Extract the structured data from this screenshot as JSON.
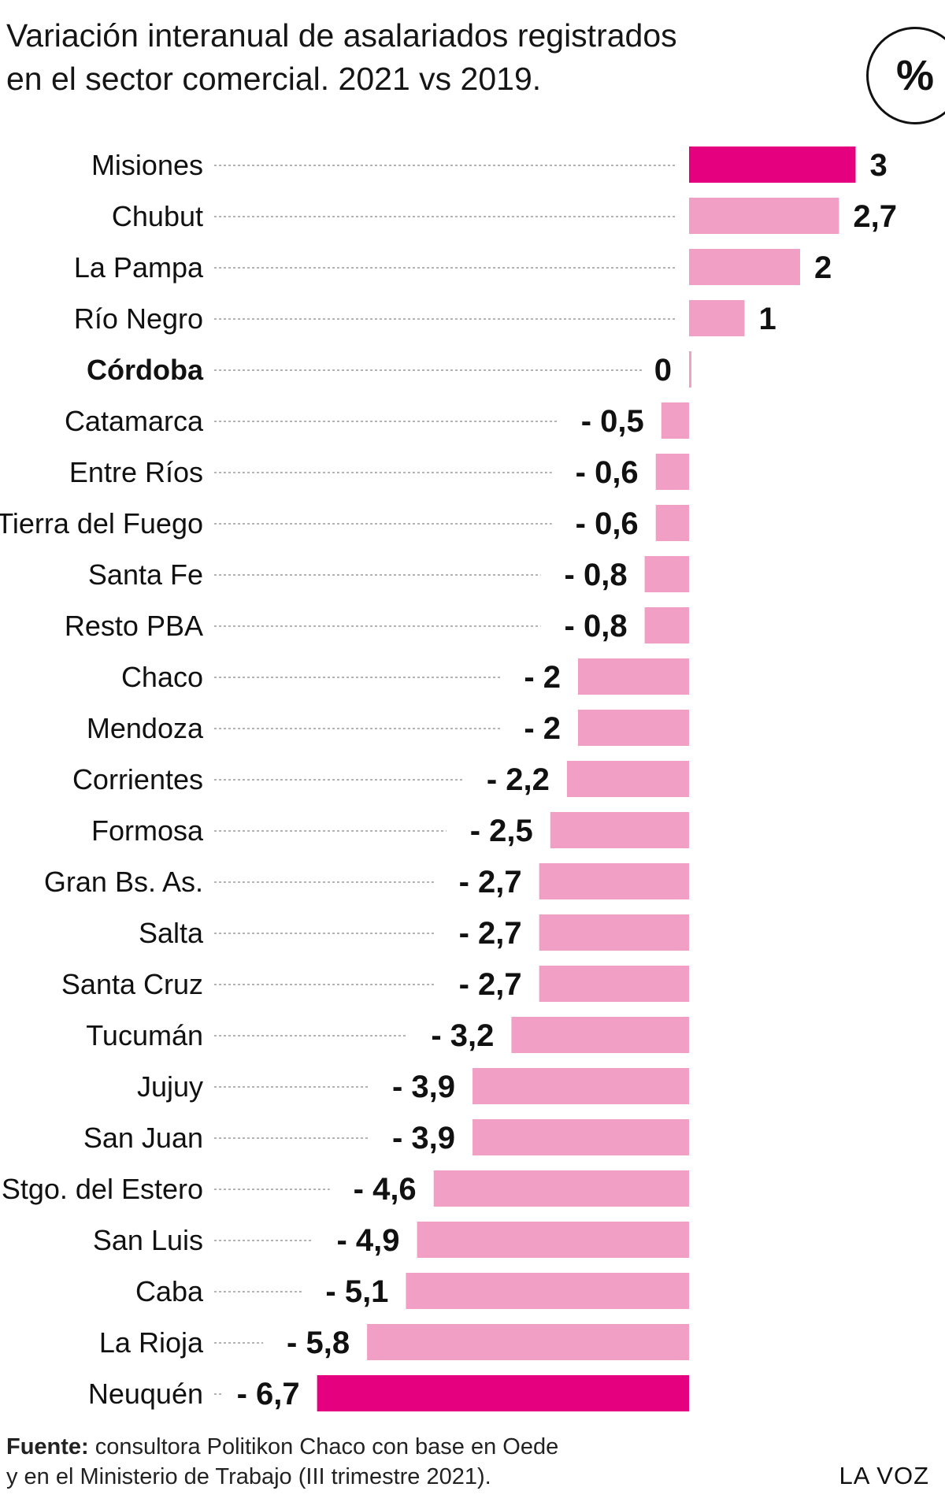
{
  "title": {
    "line1": "Variación interanual de asalariados registrados",
    "line2": "en el sector comercial. 2021 vs 2019."
  },
  "unit_badge": "%",
  "chart_data": {
    "type": "bar",
    "orientation": "horizontal",
    "title": "Variación interanual de asalariados registrados en el sector comercial. 2021 vs 2019.",
    "unit": "%",
    "categories": [
      "Misiones",
      "Chubut",
      "La Pampa",
      "Río Negro",
      "Córdoba",
      "Catamarca",
      "Entre Ríos",
      "Tierra del Fuego",
      "Santa Fe",
      "Resto PBA",
      "Chaco",
      "Mendoza",
      "Corrientes",
      "Formosa",
      "Gran Bs. As.",
      "Salta",
      "Santa Cruz",
      "Tucumán",
      "Jujuy",
      "San Juan",
      "Stgo. del Estero",
      "San Luis",
      "Caba",
      "La Rioja",
      "Neuquén"
    ],
    "values": [
      3,
      2.7,
      2,
      1,
      0,
      -0.5,
      -0.6,
      -0.6,
      -0.8,
      -0.8,
      -2,
      -2,
      -2.2,
      -2.5,
      -2.7,
      -2.7,
      -2.7,
      -3.2,
      -3.9,
      -3.9,
      -4.6,
      -4.9,
      -5.1,
      -5.8,
      -6.7
    ],
    "value_labels": [
      "3",
      "2,7",
      "2",
      "1",
      "0",
      "- 0,5",
      "- 0,6",
      "- 0,6",
      "- 0,8",
      "- 0,8",
      "- 2",
      "- 2",
      "- 2,2",
      "- 2,5",
      "- 2,7",
      "- 2,7",
      "- 2,7",
      "- 3,2",
      "- 3,9",
      "- 3,9",
      "- 4,6",
      "- 4,9",
      "- 5,1",
      "- 5,8",
      "- 6,7"
    ],
    "highlight_categories": [
      "Misiones",
      "Neuquén"
    ],
    "bold_categories": [
      "Córdoba"
    ],
    "xlim": [
      -6.7,
      3
    ],
    "grid": false,
    "legend": "none",
    "colors": {
      "bar": "#f29fc5",
      "highlight": "#e4007e",
      "leader": "#9a9a9a",
      "text": "#111111"
    }
  },
  "source": {
    "label": "Fuente:",
    "line1": "consultora Politikon Chaco con base en Oede",
    "line2": "y en el Ministerio de Trabajo (III trimestre 2021)."
  },
  "brand": "LA VOZ"
}
